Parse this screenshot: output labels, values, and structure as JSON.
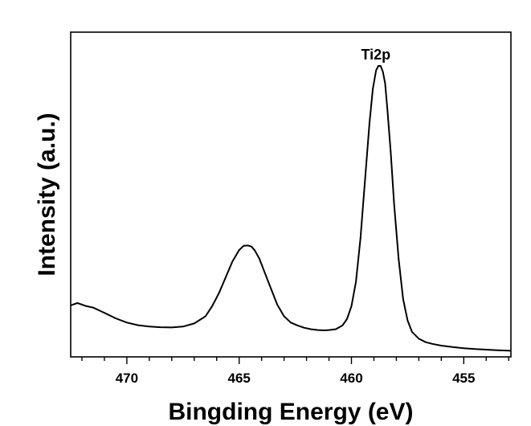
{
  "chart_data": {
    "type": "line",
    "xlabel": "Bingding Energy (eV)",
    "ylabel": "Intensity (a.u.)",
    "x_axis_reversed": true,
    "xlim": [
      472.5,
      452.9
    ],
    "ylim": [
      0,
      100
    ],
    "y_ticks_shown": false,
    "grid": false,
    "x_ticks": [
      {
        "value": 470,
        "label": "470"
      },
      {
        "value": 465,
        "label": "465"
      },
      {
        "value": 460,
        "label": "460"
      },
      {
        "value": 455,
        "label": "455"
      }
    ],
    "annotations": [
      {
        "text": "Ti2p",
        "x": 458.7,
        "y": 100
      }
    ],
    "series": [
      {
        "color": "#000000",
        "x": [
          472.5,
          472.2,
          471.8,
          471.5,
          471.0,
          470.5,
          470.0,
          469.5,
          469.0,
          468.5,
          468.0,
          467.5,
          467.0,
          466.5,
          466.2,
          465.9,
          465.6,
          465.3,
          465.0,
          464.8,
          464.6,
          464.45,
          464.3,
          464.1,
          463.9,
          463.6,
          463.3,
          463.0,
          462.7,
          462.4,
          462.1,
          461.8,
          461.5,
          461.2,
          461.0,
          460.7,
          460.4,
          460.2,
          460.0,
          459.8,
          459.6,
          459.4,
          459.2,
          459.05,
          458.9,
          458.8,
          458.7,
          458.6,
          458.5,
          458.4,
          458.25,
          458.1,
          457.9,
          457.7,
          457.5,
          457.3,
          457.0,
          456.7,
          456.4,
          456.0,
          455.5,
          455.0,
          454.5,
          454.0,
          453.5,
          452.9
        ],
        "y": [
          16.8,
          17.6,
          16.5,
          16.0,
          14.2,
          12.3,
          10.8,
          9.9,
          9.4,
          9.2,
          9.1,
          9.4,
          10.5,
          13.0,
          16.5,
          21.0,
          26.5,
          32.0,
          36.0,
          37.5,
          37.6,
          37.2,
          35.8,
          33.0,
          29.0,
          23.0,
          17.0,
          13.0,
          10.8,
          9.8,
          9.0,
          8.5,
          8.2,
          8.1,
          8.2,
          8.5,
          9.8,
          12.0,
          16.5,
          25.0,
          40.0,
          60.0,
          80.0,
          92.0,
          98.5,
          100.0,
          100.0,
          98.0,
          94.0,
          85.0,
          70.0,
          52.0,
          33.0,
          19.0,
          11.5,
          7.5,
          5.2,
          4.0,
          3.4,
          2.8,
          2.3,
          1.9,
          1.6,
          1.4,
          1.2,
          1.0
        ]
      }
    ]
  }
}
